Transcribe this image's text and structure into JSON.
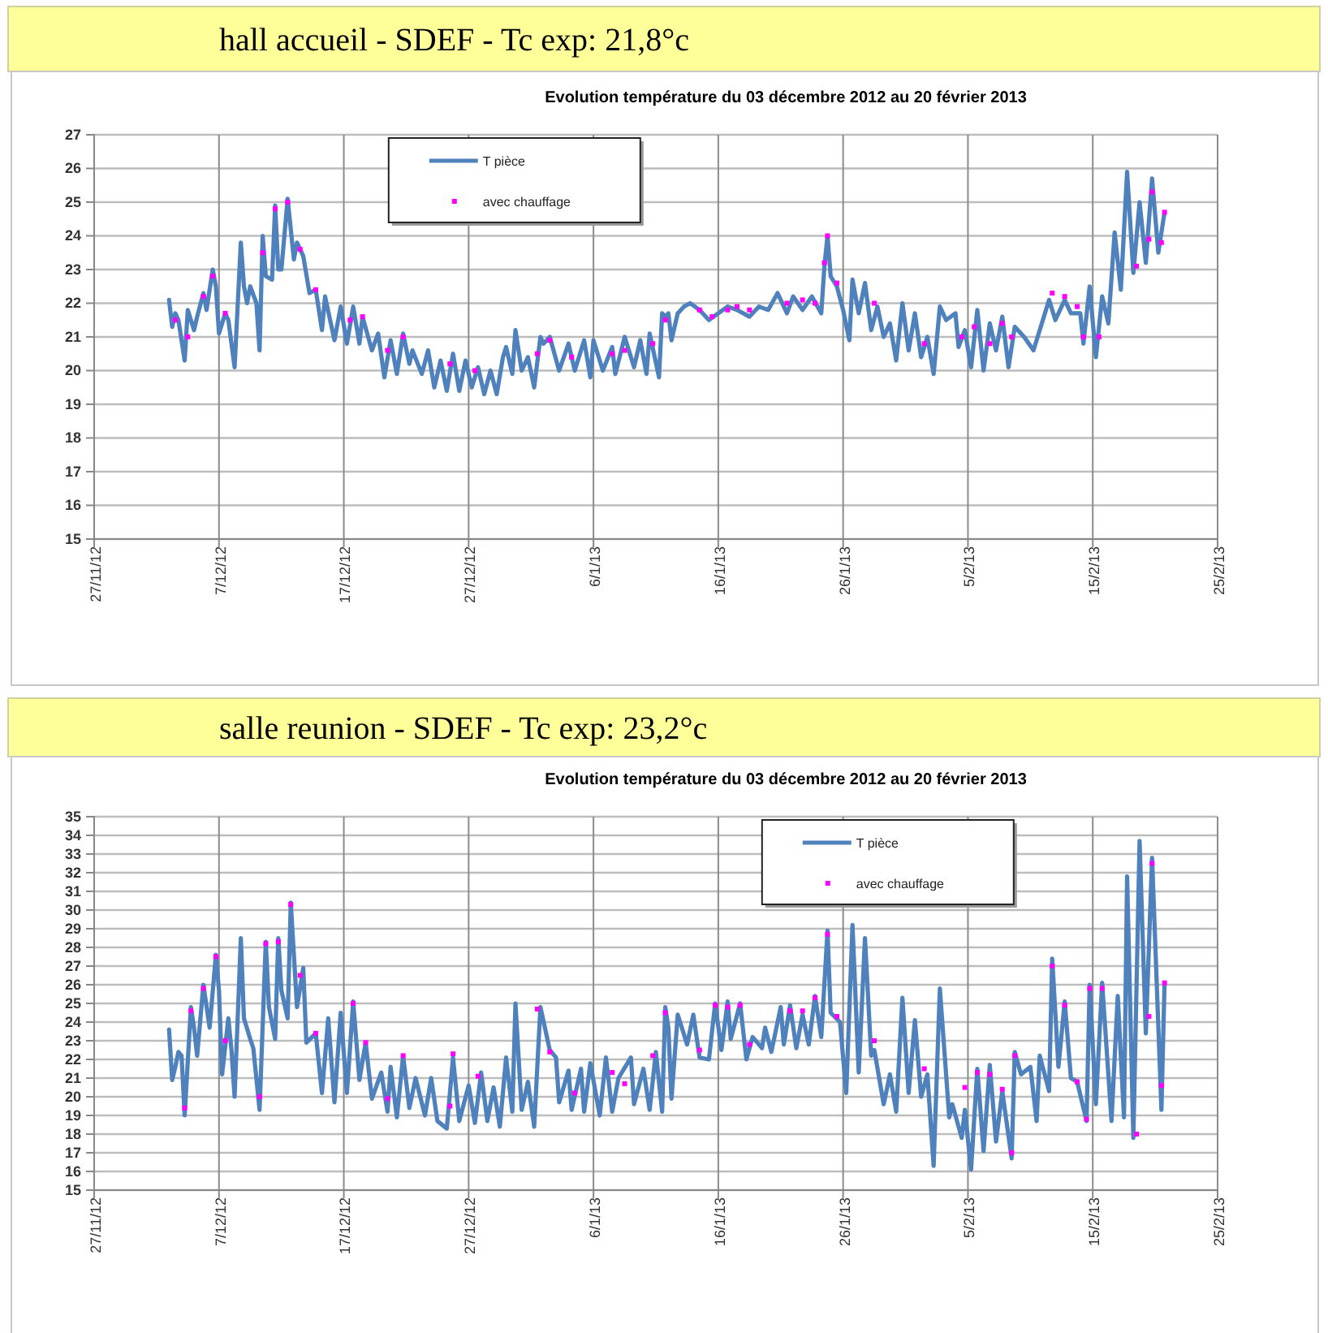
{
  "chart_data": [
    {
      "type": "line",
      "title": "hall accueil - SDEF - Tc exp: 21,8°c",
      "subtitle": "Evolution température du  03 décembre 2012 au  20 février 2013",
      "xlim": [
        "2012-11-27",
        "2013-02-25"
      ],
      "xticks": [
        {
          "value": "2012-11-27",
          "label": "27/11/12"
        },
        {
          "value": "2012-12-07",
          "label": "7/12/12"
        },
        {
          "value": "2012-12-17",
          "label": "17/12/12"
        },
        {
          "value": "2012-12-27",
          "label": "27/12/12"
        },
        {
          "value": "2013-01-06",
          "label": "6/1/13"
        },
        {
          "value": "2013-01-16",
          "label": "16/1/13"
        },
        {
          "value": "2013-01-26",
          "label": "26/1/13"
        },
        {
          "value": "2013-02-05",
          "label": "5/2/13"
        },
        {
          "value": "2013-02-15",
          "label": "15/2/13"
        },
        {
          "value": "2013-02-25",
          "label": "25/2/13"
        }
      ],
      "ylim": [
        15,
        27
      ],
      "yticks": [
        15,
        16,
        17,
        18,
        19,
        20,
        21,
        22,
        23,
        24,
        25,
        26,
        27
      ],
      "grid": true,
      "legend": "top",
      "series": [
        {
          "name": "T pièce",
          "type": "line",
          "color": "#4f81bd",
          "marker": "none",
          "line_style": "solid",
          "x": [
            "2012-12-03T00:00",
            "2012-12-03T06:00",
            "2012-12-03T12:00",
            "2012-12-03T18:00",
            "2012-12-04T06:00",
            "2012-12-04T12:00",
            "2012-12-05T00:00",
            "2012-12-05T06:00",
            "2012-12-05T18:00",
            "2012-12-06T00:00",
            "2012-12-06T12:00",
            "2012-12-06T18:00",
            "2012-12-07T00:00",
            "2012-12-07T12:00",
            "2012-12-07T18:00",
            "2012-12-08T06:00",
            "2012-12-08T18:00",
            "2012-12-09T00:00",
            "2012-12-09T06:00",
            "2012-12-09T12:00",
            "2012-12-10T00:00",
            "2012-12-10T06:00",
            "2012-12-10T12:00",
            "2012-12-10T18:00",
            "2012-12-11T06:00",
            "2012-12-11T12:00",
            "2012-12-11T18:00",
            "2012-12-12T00:00",
            "2012-12-12T12:00",
            "2012-12-13T00:00",
            "2012-12-13T06:00",
            "2012-12-13T18:00",
            "2012-12-14T06:00",
            "2012-12-14T18:00",
            "2012-12-15T06:00",
            "2012-12-15T12:00",
            "2012-12-16T06:00",
            "2012-12-16T18:00",
            "2012-12-17T06:00",
            "2012-12-17T18:00",
            "2012-12-18T06:00",
            "2012-12-18T12:00",
            "2012-12-19T06:00",
            "2012-12-19T18:00",
            "2012-12-20T06:00",
            "2012-12-20T18:00",
            "2012-12-21T06:00",
            "2012-12-21T18:00",
            "2012-12-22T06:00",
            "2012-12-22T12:00",
            "2012-12-23T06:00",
            "2012-12-23T18:00",
            "2012-12-24T06:00",
            "2012-12-24T18:00",
            "2012-12-25T06:00",
            "2012-12-25T18:00",
            "2012-12-26T06:00",
            "2012-12-26T18:00",
            "2012-12-27T06:00",
            "2012-12-27T18:00",
            "2012-12-28T06:00",
            "2012-12-28T18:00",
            "2012-12-29T06:00",
            "2012-12-29T18:00",
            "2012-12-30T00:00",
            "2012-12-30T12:00",
            "2012-12-30T18:00",
            "2012-12-31T06:00",
            "2012-12-31T18:00",
            "2013-01-01T06:00",
            "2013-01-01T18:00",
            "2013-01-02T00:00",
            "2013-01-02T12:00",
            "2013-01-03T06:00",
            "2013-01-04T00:00",
            "2013-01-04T12:00",
            "2013-01-05T06:00",
            "2013-01-05T18:00",
            "2013-01-06T00:00",
            "2013-01-06T18:00",
            "2013-01-07T12:00",
            "2013-01-07T18:00",
            "2013-01-08T12:00",
            "2013-01-09T06:00",
            "2013-01-09T18:00",
            "2013-01-10T06:00",
            "2013-01-10T12:00",
            "2013-01-11T06:00",
            "2013-01-11T12:00",
            "2013-01-11T18:00",
            "2013-01-12T00:00",
            "2013-01-12T06:00",
            "2013-01-12T18:00",
            "2013-01-13T06:00",
            "2013-01-13T18:00",
            "2013-01-14T12:00",
            "2013-01-15T06:00",
            "2013-01-16T00:00",
            "2013-01-16T18:00",
            "2013-01-17T12:00",
            "2013-01-18T12:00",
            "2013-01-19T06:00",
            "2013-01-20T00:00",
            "2013-01-20T18:00",
            "2013-01-21T12:00",
            "2013-01-22T00:00",
            "2013-01-22T18:00",
            "2013-01-23T12:00",
            "2013-01-24T06:00",
            "2013-01-24T12:00",
            "2013-01-24T18:00",
            "2013-01-25T00:00",
            "2013-01-25T12:00",
            "2013-01-26T00:00",
            "2013-01-26T12:00",
            "2013-01-26T18:00",
            "2013-01-27T06:00",
            "2013-01-27T18:00",
            "2013-01-28T06:00",
            "2013-01-28T18:00",
            "2013-01-29T06:00",
            "2013-01-29T18:00",
            "2013-01-30T06:00",
            "2013-01-30T18:00",
            "2013-01-31T06:00",
            "2013-01-31T18:00",
            "2013-02-01T06:00",
            "2013-02-01T18:00",
            "2013-02-02T06:00",
            "2013-02-02T18:00",
            "2013-02-03T06:00",
            "2013-02-04T00:00",
            "2013-02-04T06:00",
            "2013-02-04T18:00",
            "2013-02-05T06:00",
            "2013-02-05T18:00",
            "2013-02-06T06:00",
            "2013-02-06T18:00",
            "2013-02-07T06:00",
            "2013-02-07T18:00",
            "2013-02-08T06:00",
            "2013-02-08T18:00",
            "2013-02-09T12:00",
            "2013-02-10T06:00",
            "2013-02-11T00:00",
            "2013-02-11T12:00",
            "2013-02-12T00:00",
            "2013-02-12T18:00",
            "2013-02-13T06:00",
            "2013-02-14T00:00",
            "2013-02-14T06:00",
            "2013-02-14T18:00",
            "2013-02-15T06:00",
            "2013-02-15T18:00",
            "2013-02-16T06:00",
            "2013-02-16T18:00",
            "2013-02-17T06:00",
            "2013-02-17T18:00",
            "2013-02-18T06:00",
            "2013-02-18T18:00",
            "2013-02-19T06:00",
            "2013-02-19T18:00",
            "2013-02-20T06:00",
            "2013-02-20T18:00"
          ],
          "values": [
            22.1,
            21.3,
            21.7,
            21.5,
            20.3,
            21.8,
            21.2,
            21.6,
            22.3,
            21.8,
            23.0,
            22.5,
            21.1,
            21.7,
            21.5,
            20.1,
            23.8,
            22.5,
            22.0,
            22.5,
            22.0,
            20.6,
            24.0,
            22.8,
            22.7,
            24.9,
            23.0,
            23.0,
            25.1,
            23.3,
            23.8,
            23.4,
            22.3,
            22.4,
            21.2,
            22.2,
            20.9,
            21.9,
            20.8,
            21.9,
            20.8,
            21.6,
            20.6,
            21.1,
            19.8,
            20.9,
            19.9,
            21.1,
            20.2,
            20.6,
            19.9,
            20.6,
            19.5,
            20.3,
            19.4,
            20.5,
            19.4,
            20.3,
            19.5,
            20.1,
            19.3,
            20.0,
            19.3,
            20.4,
            20.7,
            19.9,
            21.2,
            20.0,
            20.4,
            19.5,
            21.0,
            20.8,
            21.0,
            20.0,
            20.8,
            20.0,
            20.9,
            19.8,
            20.9,
            20.0,
            20.7,
            19.9,
            21.0,
            20.1,
            20.9,
            19.9,
            21.1,
            19.8,
            21.7,
            21.6,
            21.7,
            20.9,
            21.7,
            21.9,
            22.0,
            21.8,
            21.5,
            21.7,
            21.9,
            21.8,
            21.6,
            21.9,
            21.8,
            22.3,
            21.7,
            22.2,
            21.8,
            22.2,
            21.7,
            23.1,
            24.0,
            22.8,
            22.5,
            21.8,
            20.9,
            22.7,
            21.7,
            22.6,
            21.2,
            21.9,
            21.0,
            21.4,
            20.3,
            22.0,
            20.6,
            21.7,
            20.4,
            21.0,
            19.9,
            21.9,
            21.5,
            21.7,
            20.7,
            21.2,
            20.1,
            21.8,
            20.0,
            21.4,
            20.6,
            21.6,
            20.1,
            21.3,
            21.0,
            20.6,
            21.5,
            22.1,
            21.5,
            22.1,
            21.7,
            21.7,
            20.8,
            22.5,
            20.4,
            22.2,
            21.4,
            24.1,
            22.4,
            25.9,
            22.9,
            25.0,
            23.2,
            25.7,
            23.5,
            24.7
          ]
        },
        {
          "name": "avec chauffage",
          "type": "scatter",
          "color": "#ff00ff",
          "marker": "square",
          "x": [
            "2012-12-03T12:00",
            "2012-12-04T12:00",
            "2012-12-05T18:00",
            "2012-12-06T12:00",
            "2012-12-07T12:00",
            "2012-12-10T12:00",
            "2012-12-11T12:00",
            "2012-12-12T12:00",
            "2012-12-13T12:00",
            "2012-12-14T18:00",
            "2012-12-17T12:00",
            "2012-12-18T12:00",
            "2012-12-20T12:00",
            "2012-12-21T18:00",
            "2012-12-25T12:00",
            "2012-12-27T12:00",
            "2013-01-01T12:00",
            "2013-01-02T12:00",
            "2013-01-04T06:00",
            "2013-01-07T12:00",
            "2013-01-08T12:00",
            "2013-01-10T18:00",
            "2013-01-11T18:00",
            "2013-01-14T12:00",
            "2013-01-15T12:00",
            "2013-01-16T18:00",
            "2013-01-17T12:00",
            "2013-01-18T12:00",
            "2013-01-21T12:00",
            "2013-01-22T18:00",
            "2013-01-23T18:00",
            "2013-01-24T12:00",
            "2013-01-24T18:00",
            "2013-01-25T12:00",
            "2013-01-28T12:00",
            "2013-02-01T12:00",
            "2013-02-04T12:00",
            "2013-02-05T12:00",
            "2013-02-06T18:00",
            "2013-02-07T18:00",
            "2013-02-08T12:00",
            "2013-02-11T18:00",
            "2013-02-12T18:00",
            "2013-02-13T18:00",
            "2013-02-14T06:00",
            "2013-02-15T12:00",
            "2013-02-18T12:00",
            "2013-02-19T12:00",
            "2013-02-19T18:00",
            "2013-02-20T12:00",
            "2013-02-20T18:00"
          ],
          "values": [
            21.5,
            21.0,
            22.2,
            22.8,
            21.7,
            23.5,
            24.8,
            25.0,
            23.6,
            22.4,
            21.5,
            21.6,
            20.6,
            21.0,
            20.2,
            20.0,
            20.5,
            20.9,
            20.4,
            20.5,
            20.6,
            20.8,
            21.5,
            21.8,
            21.6,
            21.8,
            21.9,
            21.8,
            22.0,
            22.1,
            22.0,
            23.2,
            24.0,
            22.6,
            22.0,
            20.8,
            21.0,
            21.3,
            20.8,
            21.4,
            21.0,
            22.3,
            22.2,
            21.9,
            21.0,
            21.0,
            23.1,
            23.9,
            25.3,
            23.8,
            24.7
          ]
        }
      ]
    },
    {
      "type": "line",
      "title": "salle reunion - SDEF - Tc exp: 23,2°c",
      "subtitle": "Evolution température du  03 décembre 2012 au  20 février 2013",
      "xlim": [
        "2012-11-27",
        "2013-02-25"
      ],
      "xticks": [
        {
          "value": "2012-11-27",
          "label": "27/11/12"
        },
        {
          "value": "2012-12-07",
          "label": "7/12/12"
        },
        {
          "value": "2012-12-17",
          "label": "17/12/12"
        },
        {
          "value": "2012-12-27",
          "label": "27/12/12"
        },
        {
          "value": "2013-01-06",
          "label": "6/1/13"
        },
        {
          "value": "2013-01-16",
          "label": "16/1/13"
        },
        {
          "value": "2013-01-26",
          "label": "26/1/13"
        },
        {
          "value": "2013-02-05",
          "label": "5/2/13"
        },
        {
          "value": "2013-02-15",
          "label": "15/2/13"
        },
        {
          "value": "2013-02-25",
          "label": "25/2/13"
        }
      ],
      "ylim": [
        15,
        35
      ],
      "yticks": [
        15,
        16,
        17,
        18,
        19,
        20,
        21,
        22,
        23,
        24,
        25,
        26,
        27,
        28,
        29,
        30,
        31,
        32,
        33,
        34,
        35
      ],
      "grid": true,
      "legend": "top",
      "series": [
        {
          "name": "T pièce",
          "type": "line",
          "color": "#4f81bd",
          "marker": "none",
          "line_style": "solid",
          "x": [
            "2012-12-03T00:00",
            "2012-12-03T06:00",
            "2012-12-03T12:00",
            "2012-12-03T18:00",
            "2012-12-04T00:00",
            "2012-12-04T06:00",
            "2012-12-04T18:00",
            "2012-12-05T00:00",
            "2012-12-05T06:00",
            "2012-12-05T18:00",
            "2012-12-06T06:00",
            "2012-12-06T18:00",
            "2012-12-07T00:00",
            "2012-12-07T06:00",
            "2012-12-07T18:00",
            "2012-12-08T00:00",
            "2012-12-08T06:00",
            "2012-12-08T18:00",
            "2012-12-09T00:00",
            "2012-12-09T12:00",
            "2012-12-09T18:00",
            "2012-12-10T06:00",
            "2012-12-10T18:00",
            "2012-12-11T00:00",
            "2012-12-11T12:00",
            "2012-12-11T18:00",
            "2012-12-12T00:00",
            "2012-12-12T12:00",
            "2012-12-12T18:00",
            "2012-12-13T06:00",
            "2012-12-13T18:00",
            "2012-12-14T00:00",
            "2012-12-14T18:00",
            "2012-12-15T06:00",
            "2012-12-15T18:00",
            "2012-12-16T06:00",
            "2012-12-16T18:00",
            "2012-12-17T06:00",
            "2012-12-17T18:00",
            "2012-12-18T06:00",
            "2012-12-18T18:00",
            "2012-12-19T06:00",
            "2012-12-20T00:00",
            "2012-12-20T12:00",
            "2012-12-20T18:00",
            "2012-12-21T06:00",
            "2012-12-21T18:00",
            "2012-12-22T06:00",
            "2012-12-22T18:00",
            "2012-12-23T12:00",
            "2012-12-24T00:00",
            "2012-12-24T12:00",
            "2012-12-25T06:00",
            "2012-12-25T18:00",
            "2012-12-26T06:00",
            "2012-12-27T00:00",
            "2012-12-27T12:00",
            "2012-12-28T00:00",
            "2012-12-28T12:00",
            "2012-12-29T00:00",
            "2012-12-29T12:00",
            "2012-12-30T00:00",
            "2012-12-30T12:00",
            "2012-12-30T18:00",
            "2012-12-31T06:00",
            "2012-12-31T18:00",
            "2013-01-01T06:00",
            "2013-01-01T18:00",
            "2013-01-02T12:00",
            "2013-01-03T00:00",
            "2013-01-03T06:00",
            "2013-01-04T00:00",
            "2013-01-04T06:00",
            "2013-01-05T00:00",
            "2013-01-05T06:00",
            "2013-01-05T18:00",
            "2013-01-06T12:00",
            "2013-01-07T00:00",
            "2013-01-07T12:00",
            "2013-01-08T00:00",
            "2013-01-09T00:00",
            "2013-01-09T06:00",
            "2013-01-10T00:00",
            "2013-01-10T12:00",
            "2013-01-11T00:00",
            "2013-01-11T12:00",
            "2013-01-11T18:00",
            "2013-01-12T00:00",
            "2013-01-12T06:00",
            "2013-01-12T18:00",
            "2013-01-13T12:00",
            "2013-01-14T00:00",
            "2013-01-14T12:00",
            "2013-01-15T06:00",
            "2013-01-15T18:00",
            "2013-01-16T06:00",
            "2013-01-16T18:00",
            "2013-01-17T00:00",
            "2013-01-17T18:00",
            "2013-01-18T06:00",
            "2013-01-18T18:00",
            "2013-01-19T12:00",
            "2013-01-19T18:00",
            "2013-01-20T06:00",
            "2013-01-21T00:00",
            "2013-01-21T06:00",
            "2013-01-21T18:00",
            "2013-01-22T06:00",
            "2013-01-22T18:00",
            "2013-01-23T06:00",
            "2013-01-23T18:00",
            "2013-01-24T06:00",
            "2013-01-24T18:00",
            "2013-01-25T00:00",
            "2013-01-25T18:00",
            "2013-01-26T06:00",
            "2013-01-26T18:00",
            "2013-01-27T06:00",
            "2013-01-27T18:00",
            "2013-01-28T06:00",
            "2013-01-28T12:00",
            "2013-01-29T06:00",
            "2013-01-29T18:00",
            "2013-01-30T06:00",
            "2013-01-30T18:00",
            "2013-01-31T06:00",
            "2013-01-31T18:00",
            "2013-02-01T06:00",
            "2013-02-01T18:00",
            "2013-02-02T06:00",
            "2013-02-02T18:00",
            "2013-02-03T12:00",
            "2013-02-03T18:00",
            "2013-02-04T12:00",
            "2013-02-04T18:00",
            "2013-02-05T06:00",
            "2013-02-05T18:00",
            "2013-02-06T06:00",
            "2013-02-06T18:00",
            "2013-02-07T06:00",
            "2013-02-07T18:00",
            "2013-02-08T12:00",
            "2013-02-08T18:00",
            "2013-02-09T06:00",
            "2013-02-10T00:00",
            "2013-02-10T12:00",
            "2013-02-10T18:00",
            "2013-02-11T12:00",
            "2013-02-11T18:00",
            "2013-02-12T06:00",
            "2013-02-12T18:00",
            "2013-02-13T06:00",
            "2013-02-13T18:00",
            "2013-02-14T12:00",
            "2013-02-14T18:00",
            "2013-02-15T06:00",
            "2013-02-15T18:00",
            "2013-02-16T12:00",
            "2013-02-17T00:00",
            "2013-02-17T12:00",
            "2013-02-17T18:00",
            "2013-02-18T06:00",
            "2013-02-18T18:00",
            "2013-02-19T06:00",
            "2013-02-19T18:00",
            "2013-02-20T12:00",
            "2013-02-20T18:00"
          ],
          "values": [
            23.6,
            20.9,
            21.6,
            22.4,
            22.2,
            19.0,
            24.8,
            23.7,
            22.2,
            26.0,
            23.7,
            27.6,
            25.7,
            21.2,
            24.2,
            22.5,
            20.0,
            28.5,
            24.2,
            23.1,
            22.6,
            19.3,
            28.3,
            24.8,
            23.1,
            28.5,
            25.7,
            24.2,
            30.4,
            24.8,
            26.9,
            22.9,
            23.4,
            20.2,
            24.2,
            19.7,
            24.5,
            20.2,
            25.1,
            20.9,
            22.9,
            19.9,
            21.3,
            19.2,
            21.6,
            18.9,
            22.2,
            19.4,
            21.0,
            19.0,
            21.0,
            18.7,
            18.3,
            22.1,
            18.7,
            20.6,
            18.6,
            21.3,
            18.7,
            20.5,
            18.4,
            22.1,
            19.2,
            25.0,
            19.3,
            20.8,
            18.4,
            24.8,
            22.5,
            22.1,
            19.7,
            21.4,
            19.3,
            21.5,
            19.2,
            21.8,
            19.0,
            22.1,
            19.2,
            21.0,
            22.1,
            19.6,
            21.5,
            19.3,
            22.4,
            19.2,
            24.8,
            23.7,
            19.9,
            24.4,
            22.8,
            24.4,
            22.1,
            22.0,
            25.0,
            22.5,
            25.1,
            23.1,
            25.0,
            22.0,
            23.2,
            22.6,
            23.7,
            22.4,
            24.8,
            22.8,
            24.9,
            22.6,
            24.4,
            22.8,
            25.4,
            23.2,
            28.9,
            24.5,
            24.0,
            20.2,
            29.2,
            21.3,
            28.5,
            22.2,
            22.5,
            19.6,
            21.2,
            19.2,
            25.3,
            20.2,
            24.1,
            20.0,
            21.2,
            16.3,
            25.8,
            18.9,
            19.6,
            17.8,
            19.3,
            16.1,
            21.5,
            17.1,
            21.7,
            17.6,
            20.3,
            16.7,
            22.4,
            21.2,
            21.6,
            18.7,
            22.2,
            20.3,
            27.4,
            21.6,
            25.1,
            21.0,
            20.8,
            18.7,
            26.0,
            19.6,
            26.1,
            18.7,
            25.4,
            18.9,
            31.8,
            17.8,
            33.7,
            23.4,
            32.8,
            19.3,
            26.1
          ]
        },
        {
          "name": "avec chauffage",
          "type": "scatter",
          "color": "#ff00ff",
          "marker": "square",
          "x": [
            "2012-12-04T06:00",
            "2012-12-04T18:00",
            "2012-12-05T18:00",
            "2012-12-06T18:00",
            "2012-12-07T12:00",
            "2012-12-10T06:00",
            "2012-12-10T18:00",
            "2012-12-11T18:00",
            "2012-12-12T18:00",
            "2012-12-13T12:00",
            "2012-12-14T18:00",
            "2012-12-17T18:00",
            "2012-12-18T18:00",
            "2012-12-20T12:00",
            "2012-12-21T18:00",
            "2012-12-25T12:00",
            "2012-12-25T18:00",
            "2012-12-27T18:00",
            "2013-01-01T12:00",
            "2013-01-02T12:00",
            "2013-01-04T12:00",
            "2013-01-07T12:00",
            "2013-01-08T12:00",
            "2013-01-10T18:00",
            "2013-01-11T18:00",
            "2013-01-14T12:00",
            "2013-01-15T18:00",
            "2013-01-16T18:00",
            "2013-01-17T18:00",
            "2013-01-18T12:00",
            "2013-01-21T18:00",
            "2013-01-22T18:00",
            "2013-01-23T18:00",
            "2013-01-24T18:00",
            "2013-01-25T12:00",
            "2013-01-28T12:00",
            "2013-02-01T12:00",
            "2013-02-04T18:00",
            "2013-02-05T18:00",
            "2013-02-06T18:00",
            "2013-02-07T18:00",
            "2013-02-08T12:00",
            "2013-02-08T18:00",
            "2013-02-11T18:00",
            "2013-02-12T18:00",
            "2013-02-13T18:00",
            "2013-02-14T12:00",
            "2013-02-14T18:00",
            "2013-02-15T18:00",
            "2013-02-18T12:00",
            "2013-02-19T12:00",
            "2013-02-19T18:00",
            "2013-02-20T12:00",
            "2013-02-20T18:00"
          ],
          "values": [
            19.4,
            24.6,
            25.8,
            27.5,
            23.0,
            20.0,
            28.2,
            28.3,
            30.3,
            26.5,
            23.4,
            25.0,
            22.9,
            19.9,
            22.2,
            19.5,
            22.3,
            21.1,
            24.7,
            22.4,
            20.2,
            21.3,
            20.7,
            22.2,
            24.5,
            22.5,
            24.9,
            24.8,
            24.9,
            22.8,
            24.6,
            24.6,
            25.3,
            28.7,
            24.3,
            23.0,
            21.5,
            20.5,
            21.3,
            21.2,
            20.4,
            17.0,
            22.2,
            27.0,
            24.9,
            20.8,
            18.8,
            25.8,
            25.8,
            18.0,
            24.3,
            32.5,
            20.6,
            26.1
          ]
        }
      ]
    }
  ]
}
